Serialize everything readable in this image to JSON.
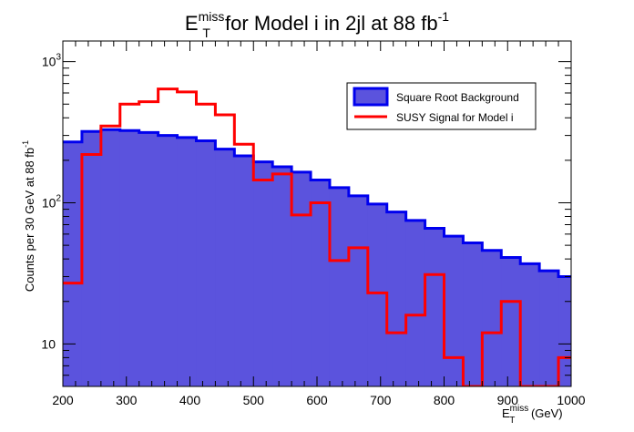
{
  "chart_data": {
    "type": "histogram",
    "title": {
      "base": "E",
      "sup": "miss",
      "sub": "T",
      "rest": " for Model i in 2jl at 88 fb",
      "rest_sup": "-1"
    },
    "ylabel": {
      "text": "Counts per 30 GeV at 88 fb",
      "sup": "-1"
    },
    "xlabel": {
      "base": "E",
      "sup": "miss",
      "sub": "T",
      "unit": " (GeV)"
    },
    "x_range": [
      200,
      1000
    ],
    "y_range": [
      5,
      1400
    ],
    "y_scale": "log",
    "x_ticks": [
      "200",
      "300",
      "400",
      "500",
      "600",
      "700",
      "800",
      "900",
      "1000"
    ],
    "y_ticks": [
      {
        "value": 10,
        "base": "10",
        "sup": ""
      },
      {
        "value": 100,
        "base": "10",
        "sup": "2"
      },
      {
        "value": 1000,
        "base": "10",
        "sup": "3"
      }
    ],
    "bin_edges": [
      200,
      230,
      260,
      290,
      320,
      350,
      380,
      410,
      440,
      470,
      500,
      530,
      560,
      590,
      620,
      650,
      680,
      710,
      740,
      770,
      800,
      830,
      860,
      890,
      920,
      950,
      980,
      1010
    ],
    "series": [
      {
        "name": "Square Root Background",
        "style": "filled",
        "fill": "#5b53dd",
        "stroke": "#0000ee",
        "values": [
          270,
          320,
          330,
          325,
          315,
          300,
          290,
          275,
          240,
          215,
          195,
          180,
          165,
          145,
          128,
          112,
          98,
          86,
          75,
          66,
          58,
          52,
          46,
          41,
          37,
          33,
          30
        ]
      },
      {
        "name": "SUSY Signal for Model i",
        "style": "line",
        "stroke": "#ff0000",
        "values": [
          27,
          220,
          350,
          500,
          520,
          640,
          610,
          500,
          420,
          260,
          145,
          160,
          82,
          100,
          39,
          48,
          23,
          12,
          16,
          31,
          8,
          5,
          12,
          20,
          5,
          5,
          8
        ]
      }
    ],
    "legend_position": "top-right"
  }
}
